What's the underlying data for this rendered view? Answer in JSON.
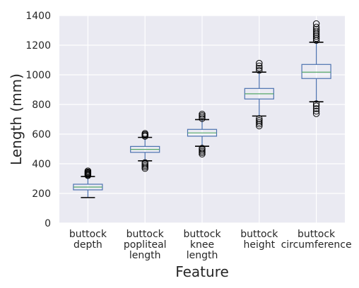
{
  "chart_data": {
    "type": "box",
    "title": "",
    "xlabel": "Feature",
    "ylabel": "Length (mm)",
    "ylim": [
      0,
      1400
    ],
    "yticks": [
      0,
      200,
      400,
      600,
      800,
      1000,
      1200,
      1400
    ],
    "grid": true,
    "legend": "none",
    "colors": {
      "background": "#eaeaf2",
      "grid": "#ffffff",
      "box": "#4c72b0",
      "median": "#55a868",
      "whisker": "#4c72b0",
      "cap": "#000000",
      "outlier": "#000000",
      "text": "#262626"
    },
    "categories": [
      {
        "lines": [
          "buttock",
          "depth"
        ],
        "whislo": 172,
        "q1": 224,
        "median": 243,
        "q3": 262,
        "whishi": 314,
        "outliers": [
          320,
          325,
          330,
          335,
          340,
          345,
          352
        ]
      },
      {
        "lines": [
          "buttock",
          "popliteal",
          "length"
        ],
        "whislo": 420,
        "q1": 477,
        "median": 497,
        "q3": 517,
        "whishi": 578,
        "outliers": [
          368,
          378,
          388,
          398,
          408,
          585,
          592,
          598,
          605
        ]
      },
      {
        "lines": [
          "buttock",
          "knee",
          "length"
        ],
        "whislo": 518,
        "q1": 586,
        "median": 608,
        "q3": 632,
        "whishi": 698,
        "outliers": [
          465,
          475,
          485,
          495,
          505,
          705,
          715,
          725,
          735
        ]
      },
      {
        "lines": [
          "buttock",
          "height"
        ],
        "whislo": 722,
        "q1": 837,
        "median": 872,
        "q3": 908,
        "whishi": 1018,
        "outliers": [
          655,
          668,
          680,
          692,
          705,
          1030,
          1045,
          1060,
          1078
        ]
      },
      {
        "lines": [
          "buttock",
          "circumference"
        ],
        "whislo": 818,
        "q1": 975,
        "median": 1018,
        "q3": 1070,
        "whishi": 1220,
        "outliers": [
          738,
          755,
          772,
          790,
          805,
          1232,
          1245,
          1258,
          1270,
          1282,
          1295,
          1308,
          1322,
          1345
        ]
      }
    ]
  }
}
